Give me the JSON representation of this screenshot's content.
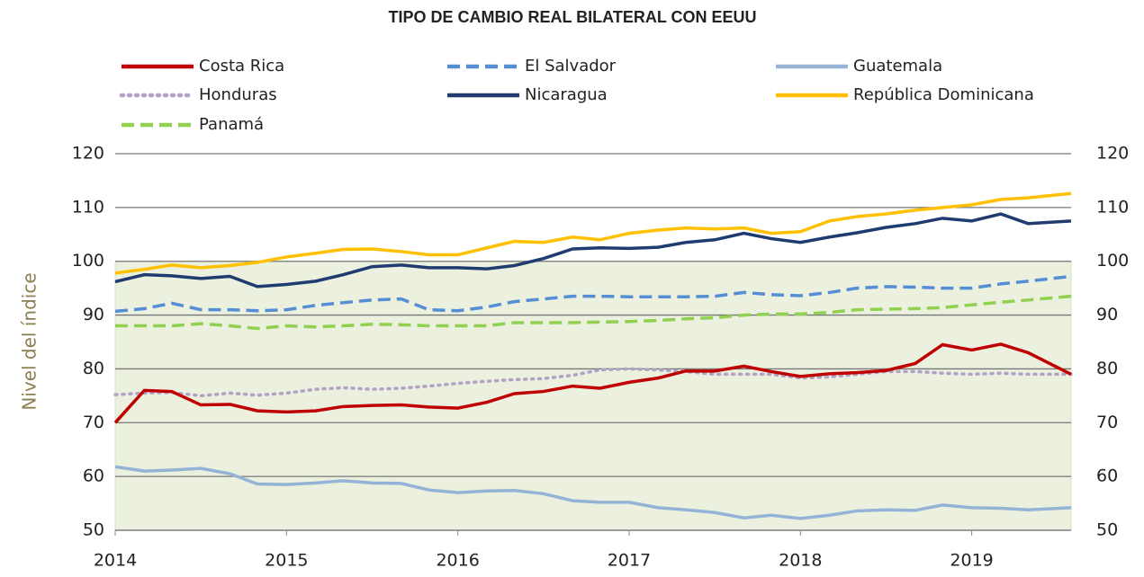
{
  "chart_data": {
    "type": "line",
    "title": "TIPO DE CAMBIO REAL BILATERAL CON EEUU",
    "ylabel": "Nivel del índice",
    "x": [
      2014,
      2014.17,
      2014.33,
      2014.5,
      2014.67,
      2014.83,
      2015,
      2015.17,
      2015.33,
      2015.5,
      2015.67,
      2015.83,
      2016,
      2016.17,
      2016.33,
      2016.5,
      2016.67,
      2016.83,
      2017,
      2017.17,
      2017.33,
      2017.5,
      2017.67,
      2017.83,
      2018,
      2018.17,
      2018.33,
      2018.5,
      2018.67,
      2018.83,
      2019,
      2019.17,
      2019.33,
      2019.58
    ],
    "series": [
      {
        "name": "Costa Rica",
        "color": "#c00000",
        "style": "solid",
        "values": [
          70,
          76,
          75.8,
          73.3,
          73.4,
          72.2,
          72,
          72.2,
          73,
          73.2,
          73.3,
          72.9,
          72.7,
          73.8,
          75.4,
          75.8,
          76.8,
          76.4,
          77.5,
          78.3,
          79.6,
          79.6,
          80.5,
          79.5,
          78.6,
          79.1,
          79.3,
          79.7,
          81,
          84.5,
          83.5,
          84.6,
          83,
          79
        ]
      },
      {
        "name": "El Salvador",
        "color": "#558ed5",
        "style": "dashed",
        "values": [
          90.7,
          91.2,
          92.2,
          91,
          91,
          90.8,
          91,
          91.8,
          92.3,
          92.8,
          93,
          91,
          90.8,
          91.5,
          92.5,
          93,
          93.5,
          93.5,
          93.4,
          93.4,
          93.4,
          93.5,
          94.2,
          93.8,
          93.6,
          94.2,
          95,
          95.3,
          95.2,
          95,
          95,
          95.8,
          96.3,
          97.2
        ]
      },
      {
        "name": "Guatemala",
        "color": "#95b3d7",
        "style": "solid",
        "values": [
          61.8,
          61,
          61.2,
          61.5,
          60.5,
          58.6,
          58.5,
          58.8,
          59.2,
          58.8,
          58.7,
          57.5,
          57,
          57.3,
          57.4,
          56.8,
          55.5,
          55.2,
          55.2,
          54.2,
          53.8,
          53.3,
          52.3,
          52.8,
          52.2,
          52.8,
          53.6,
          53.8,
          53.7,
          54.7,
          54.2,
          54.1,
          53.8,
          54.2
        ]
      },
      {
        "name": "Honduras",
        "color": "#b3a2c7",
        "style": "dotted",
        "values": [
          75.2,
          75.5,
          75.6,
          75,
          75.5,
          75.1,
          75.5,
          76.2,
          76.5,
          76.2,
          76.4,
          76.8,
          77.3,
          77.7,
          78,
          78.2,
          78.8,
          79.8,
          80,
          79.8,
          79.5,
          79,
          79,
          79,
          78.3,
          78.5,
          79,
          79.5,
          79.5,
          79.2,
          79,
          79.2,
          79,
          79
        ]
      },
      {
        "name": "Nicaragua",
        "color": "#1f3b6f",
        "style": "solid",
        "values": [
          96.2,
          97.5,
          97.3,
          96.8,
          97.2,
          95.3,
          95.7,
          96.3,
          97.5,
          99,
          99.3,
          98.8,
          98.8,
          98.6,
          99.2,
          100.5,
          102.3,
          102.5,
          102.4,
          102.6,
          103.5,
          104,
          105.2,
          104.2,
          103.5,
          104.5,
          105.3,
          106.3,
          107,
          108,
          107.5,
          108.8,
          107,
          107.5
        ]
      },
      {
        "name": "República Dominicana",
        "color": "#ffc000",
        "style": "solid",
        "values": [
          97.8,
          98.5,
          99.3,
          98.8,
          99.2,
          99.8,
          100.8,
          101.5,
          102.2,
          102.3,
          101.8,
          101.2,
          101.2,
          102.5,
          103.7,
          103.5,
          104.5,
          104,
          105.2,
          105.8,
          106.2,
          106,
          106.2,
          105.2,
          105.5,
          107.5,
          108.3,
          108.8,
          109.5,
          110,
          110.5,
          111.5,
          111.8,
          112.6
        ]
      },
      {
        "name": "Panamá",
        "color": "#92d050",
        "style": "dashed",
        "values": [
          88,
          88,
          88,
          88.4,
          88,
          87.5,
          88,
          87.8,
          88,
          88.3,
          88.2,
          88,
          88,
          88,
          88.6,
          88.6,
          88.6,
          88.7,
          88.8,
          89,
          89.3,
          89.5,
          90,
          90.2,
          90.2,
          90.5,
          91,
          91.1,
          91.2,
          91.4,
          91.9,
          92.4,
          92.8,
          93.5
        ]
      }
    ],
    "shaded_range": [
      50,
      100
    ],
    "xlim": [
      2014,
      2019.58
    ],
    "xticks": [
      2014,
      2015,
      2016,
      2017,
      2018,
      2019
    ],
    "ylim": [
      50,
      120
    ],
    "yticks": [
      50,
      60,
      70,
      80,
      90,
      100,
      110,
      120
    ],
    "y2lim": [
      50,
      120
    ],
    "y2ticks": [
      50,
      60,
      70,
      80,
      90,
      100,
      110,
      120
    ],
    "grid": true
  }
}
